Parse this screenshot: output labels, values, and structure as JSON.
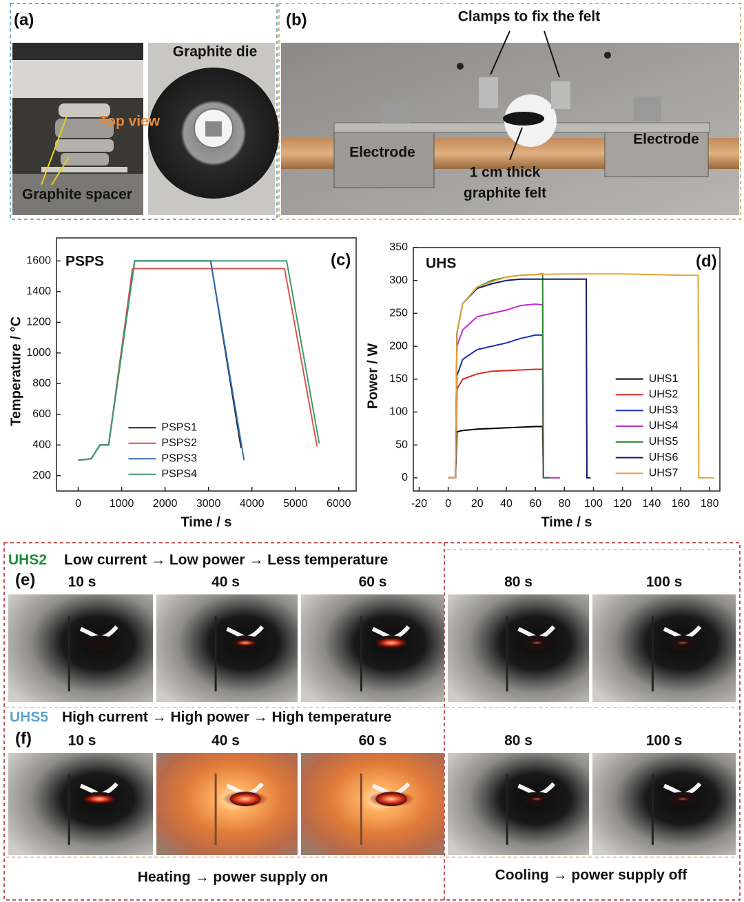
{
  "panel_a": {
    "label": "(a)",
    "graphite_die": "Graphite die",
    "top_view": "Top view",
    "graphite_spacer": "Graphite spacer"
  },
  "panel_b": {
    "label": "(b)",
    "clamps": "Clamps to fix the felt",
    "electrode_left": "Electrode",
    "electrode_right": "Electrode",
    "felt_line1": "1 cm thick",
    "felt_line2": "graphite felt"
  },
  "chart_data": [
    {
      "type": "line",
      "title": "PSPS",
      "panel_label": "(c)",
      "x_label": "Time / s",
      "y_label": "Temperature / °C",
      "xlim": [
        -500,
        6400
      ],
      "ylim": [
        100,
        1750
      ],
      "xticks": [
        0,
        1000,
        2000,
        3000,
        4000,
        5000,
        6000
      ],
      "yticks": [
        200,
        400,
        600,
        800,
        1000,
        1200,
        1400,
        1600
      ],
      "legend": "lower left",
      "series": [
        {
          "name": "PSPS1",
          "color": "#222222",
          "x": [
            0,
            300,
            500,
            700,
            1300,
            3050,
            3750
          ],
          "values": [
            300,
            310,
            400,
            400,
            1600,
            1600,
            380
          ]
        },
        {
          "name": "PSPS2",
          "color": "#d9534f",
          "x": [
            0,
            300,
            500,
            700,
            1250,
            4750,
            5500
          ],
          "values": [
            300,
            310,
            400,
            400,
            1550,
            1550,
            390
          ]
        },
        {
          "name": "PSPS3",
          "color": "#2f6db5",
          "x": [
            0,
            300,
            500,
            700,
            1300,
            3050,
            3820
          ],
          "values": [
            300,
            310,
            400,
            400,
            1600,
            1600,
            300
          ]
        },
        {
          "name": "PSPS4",
          "color": "#3d9a6a",
          "x": [
            0,
            300,
            500,
            700,
            1300,
            4800,
            5550
          ],
          "values": [
            300,
            310,
            400,
            400,
            1600,
            1600,
            410
          ]
        }
      ]
    },
    {
      "type": "line",
      "title": "UHS",
      "panel_label": "(d)",
      "x_label": "Time / s",
      "y_label": "Power / W",
      "xlim": [
        -24,
        187
      ],
      "ylim": [
        -20,
        350
      ],
      "xticks": [
        -20,
        0,
        20,
        40,
        60,
        80,
        100,
        120,
        140,
        160,
        180
      ],
      "yticks": [
        0,
        50,
        100,
        150,
        200,
        250,
        300,
        350
      ],
      "legend": "center right",
      "series": [
        {
          "name": "UHS1",
          "color": "#000000",
          "x": [
            0,
            5,
            6,
            10,
            20,
            30,
            40,
            50,
            60,
            65,
            65.5,
            70
          ],
          "values": [
            0,
            0,
            70,
            72,
            74,
            75,
            76,
            77,
            78,
            78,
            0,
            0
          ]
        },
        {
          "name": "UHS2",
          "color": "#d42a1e",
          "x": [
            0,
            5,
            6,
            10,
            20,
            30,
            40,
            50,
            60,
            65,
            65.5,
            70
          ],
          "values": [
            0,
            0,
            135,
            150,
            158,
            162,
            163,
            164,
            165,
            165,
            0,
            0
          ]
        },
        {
          "name": "UHS3",
          "color": "#1533b0",
          "x": [
            0,
            5,
            6,
            10,
            20,
            30,
            40,
            50,
            60,
            65,
            65.5,
            70
          ],
          "values": [
            0,
            0,
            155,
            180,
            195,
            200,
            205,
            212,
            217,
            217,
            0,
            0
          ]
        },
        {
          "name": "UHS4",
          "color": "#c02ccf",
          "x": [
            0,
            5,
            6,
            10,
            20,
            30,
            40,
            50,
            60,
            65,
            65.5,
            77
          ],
          "values": [
            0,
            0,
            200,
            225,
            245,
            250,
            255,
            262,
            264,
            263,
            0,
            0
          ]
        },
        {
          "name": "UHS5",
          "color": "#2c8a2c",
          "x": [
            0,
            5,
            6,
            10,
            20,
            30,
            40,
            50,
            60,
            65,
            65.5,
            70
          ],
          "values": [
            0,
            0,
            220,
            265,
            290,
            300,
            305,
            308,
            309,
            310,
            0,
            0
          ]
        },
        {
          "name": "UHS6",
          "color": "#141a6e",
          "x": [
            0,
            5,
            6,
            10,
            20,
            30,
            40,
            50,
            60,
            70,
            80,
            95,
            95.5,
            98
          ],
          "values": [
            0,
            0,
            220,
            265,
            288,
            295,
            300,
            302,
            302,
            302,
            302,
            302,
            0,
            0
          ]
        },
        {
          "name": "UHS7",
          "color": "#e3a43a",
          "x": [
            0,
            5,
            6,
            10,
            20,
            30,
            40,
            50,
            60,
            80,
            100,
            120,
            140,
            160,
            172,
            172.5,
            183
          ],
          "values": [
            0,
            0,
            220,
            265,
            290,
            298,
            305,
            308,
            309,
            310,
            310,
            310,
            309,
            308,
            308,
            0,
            0
          ]
        }
      ]
    }
  ],
  "panel_e": {
    "label": "(e)",
    "sample": "UHS2",
    "sample_color": "#1e8c3a",
    "caption": "Low current → Low power → Less temperature",
    "times": [
      "10 s",
      "40 s",
      "60 s",
      "80 s",
      "100 s"
    ]
  },
  "panel_f": {
    "label": "(f)",
    "sample": "UHS5",
    "sample_color": "#5aa3cc",
    "caption": "High current → High power → High temperature",
    "times": [
      "10 s",
      "40 s",
      "60 s",
      "80 s",
      "100 s"
    ]
  },
  "footer": {
    "heating": "Heating → power supply on",
    "cooling": "Cooling → power supply off"
  }
}
